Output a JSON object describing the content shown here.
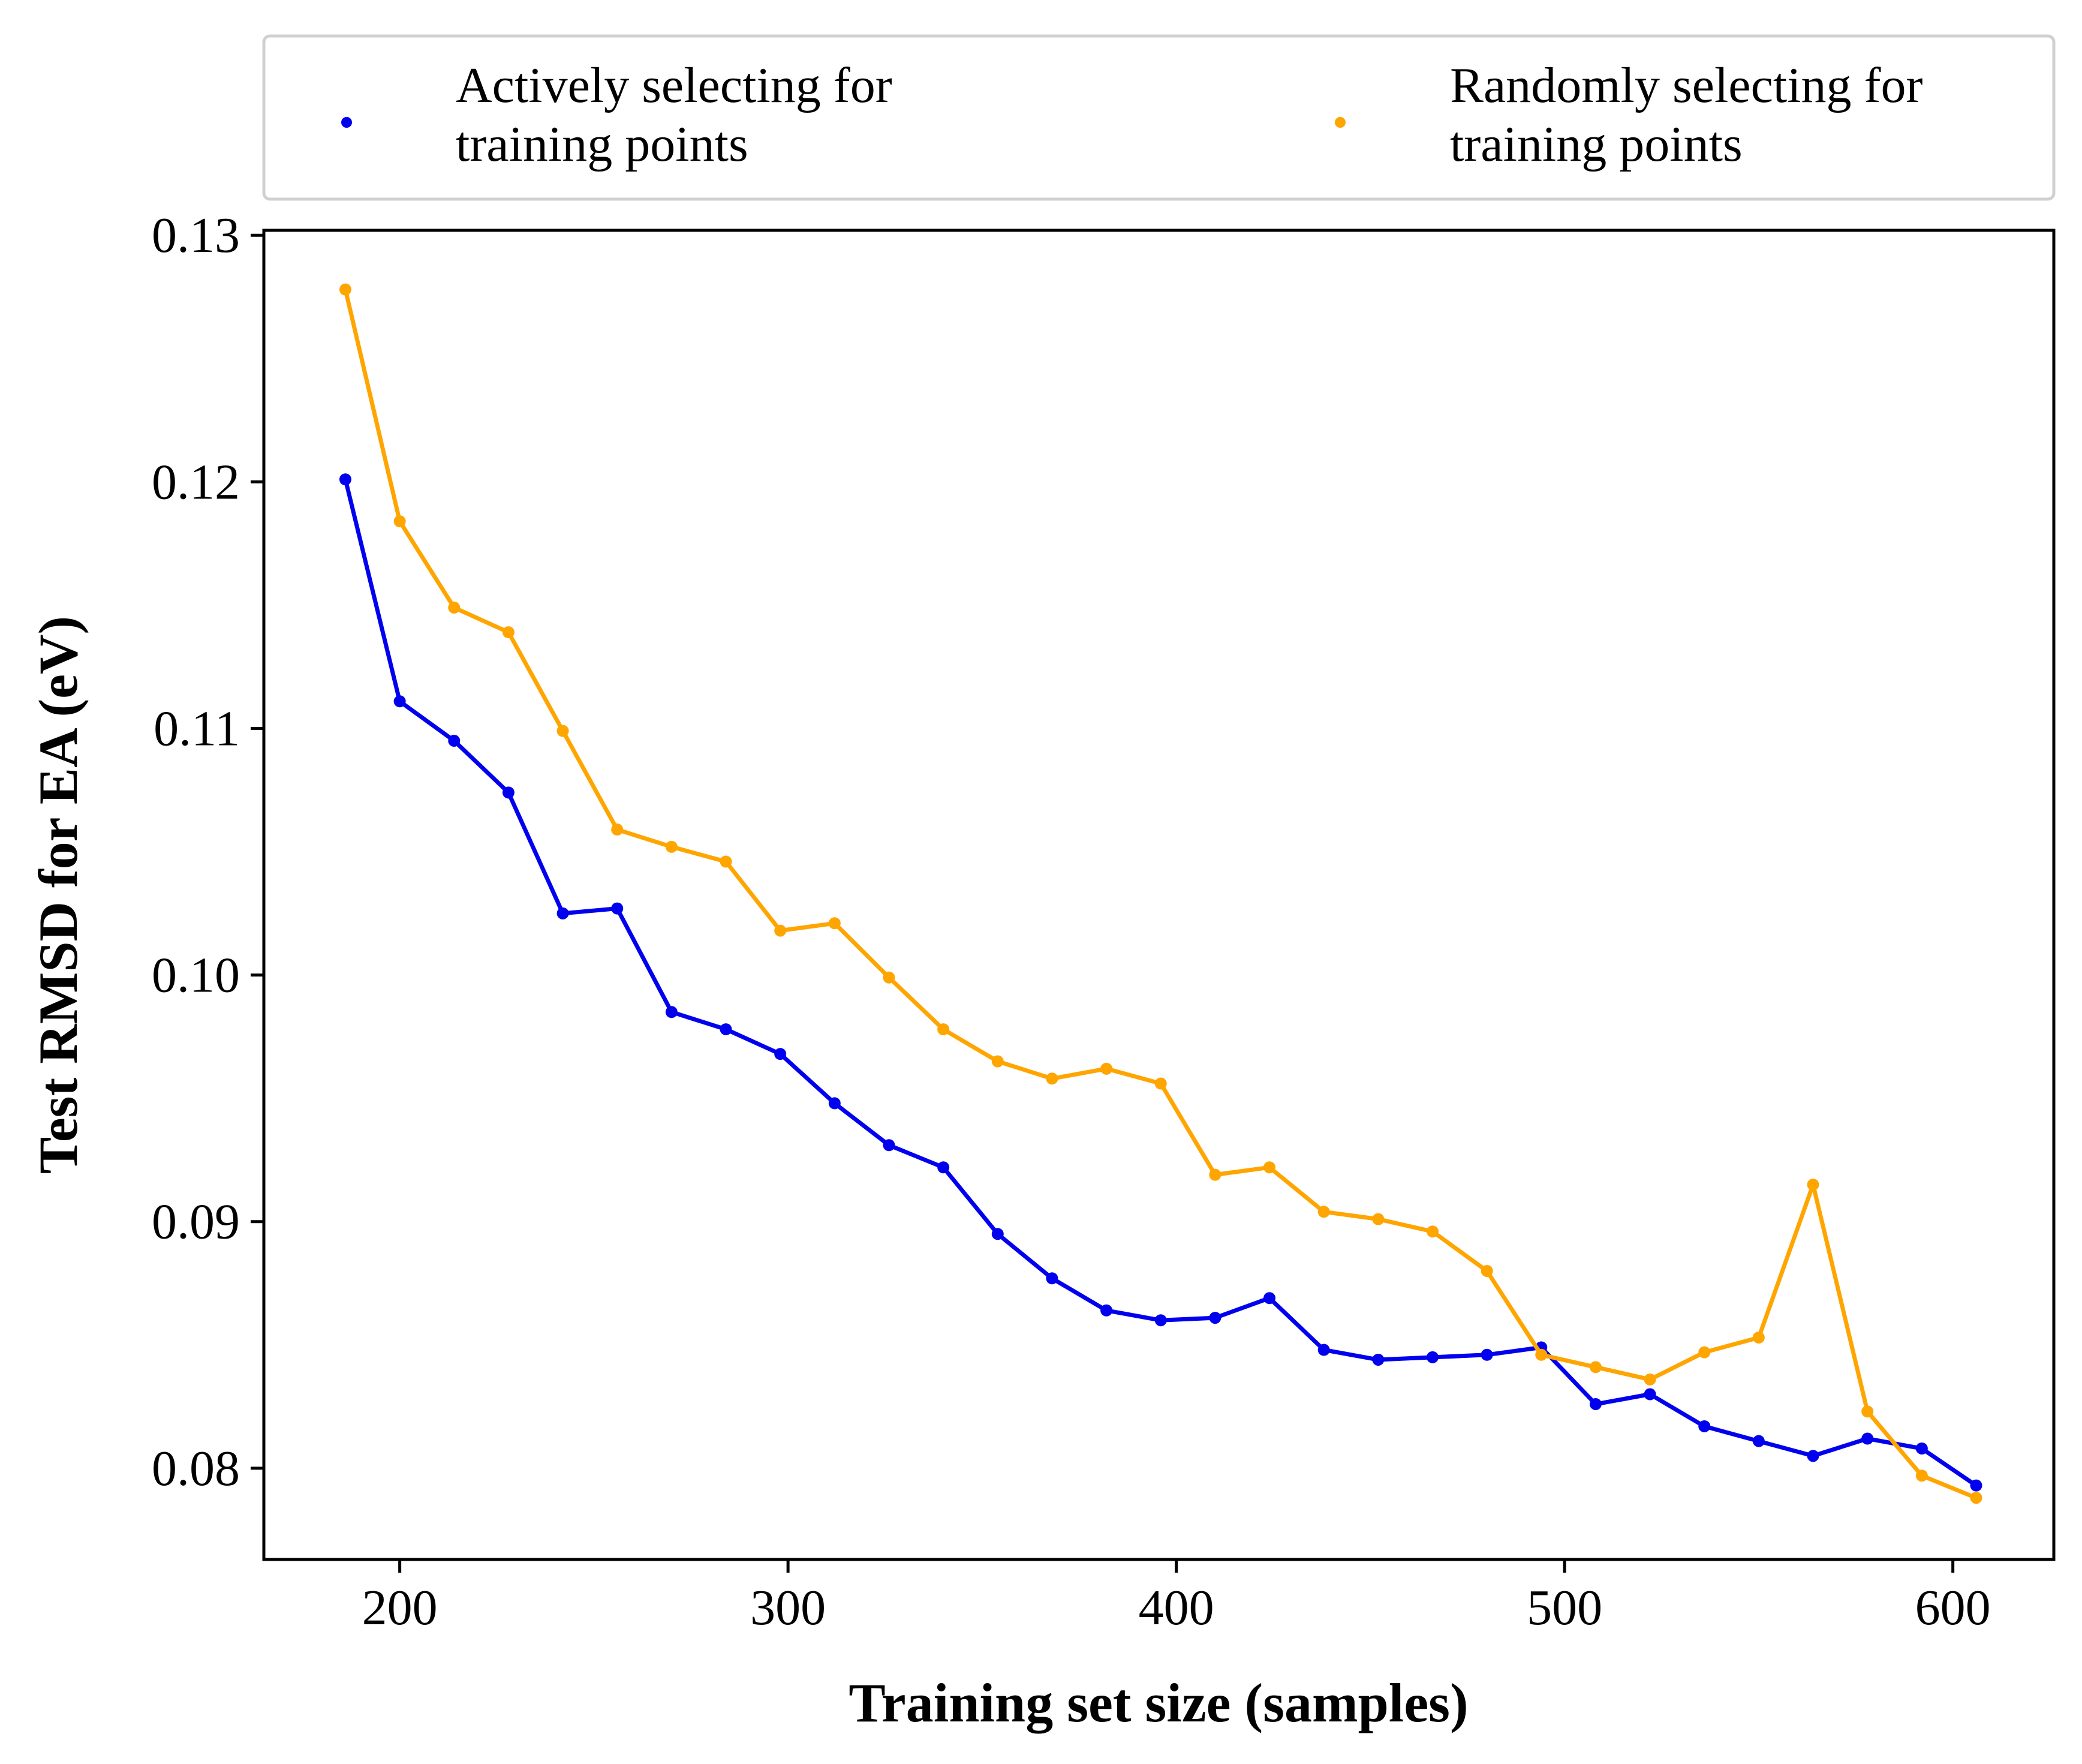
{
  "chart_data": {
    "type": "line",
    "xlabel": "Training set size (samples)",
    "ylabel": "Test RMSD for EA (eV)",
    "xlim": [
      165,
      626
    ],
    "ylim": [
      0.0763,
      0.1302
    ],
    "xticks": [
      200,
      300,
      400,
      500,
      600
    ],
    "xtick_labels": [
      "200",
      "300",
      "400",
      "500",
      "600"
    ],
    "yticks": [
      0.08,
      0.09,
      0.1,
      0.11,
      0.12,
      0.13
    ],
    "ytick_labels": [
      "0.08",
      "0.09",
      "0.10",
      "0.11",
      "0.12",
      "0.13"
    ],
    "grid": false,
    "legend_position": "top, above plot, two columns",
    "x": [
      186,
      200,
      214,
      228,
      242,
      256,
      270,
      284,
      298,
      312,
      326,
      340,
      354,
      368,
      382,
      396,
      410,
      424,
      438,
      452,
      466,
      480,
      494,
      508,
      522,
      536,
      550,
      564,
      578,
      592,
      606
    ],
    "series": [
      {
        "name": "Actively selecting for training points",
        "legend_lines": [
          "Actively selecting for",
          "training points"
        ],
        "color": "#0000ee",
        "values": [
          0.1201,
          0.1111,
          0.1095,
          0.1074,
          0.1025,
          0.1027,
          0.0985,
          0.0978,
          0.0968,
          0.0948,
          0.0931,
          0.0922,
          0.0895,
          0.0877,
          0.0864,
          0.086,
          0.0861,
          0.0869,
          0.0848,
          0.0844,
          0.0845,
          0.0846,
          0.0849,
          0.0826,
          0.083,
          0.0817,
          0.0811,
          0.0805,
          0.0812,
          0.0808,
          0.0793
        ]
      },
      {
        "name": "Randomly selecting for training points",
        "legend_lines": [
          "Randomly selecting for",
          "training points"
        ],
        "color": "#ffa500",
        "values": [
          0.1278,
          0.1184,
          0.1149,
          0.1139,
          0.1099,
          0.1059,
          0.1052,
          0.1046,
          0.1018,
          0.1021,
          0.0999,
          0.0978,
          0.0965,
          0.0958,
          0.0962,
          0.0956,
          0.0919,
          0.0922,
          0.0904,
          0.0901,
          0.0896,
          0.088,
          0.0846,
          0.0841,
          0.0836,
          0.0847,
          0.0853,
          0.0915,
          0.0823,
          0.0797,
          0.0788
        ]
      }
    ]
  }
}
